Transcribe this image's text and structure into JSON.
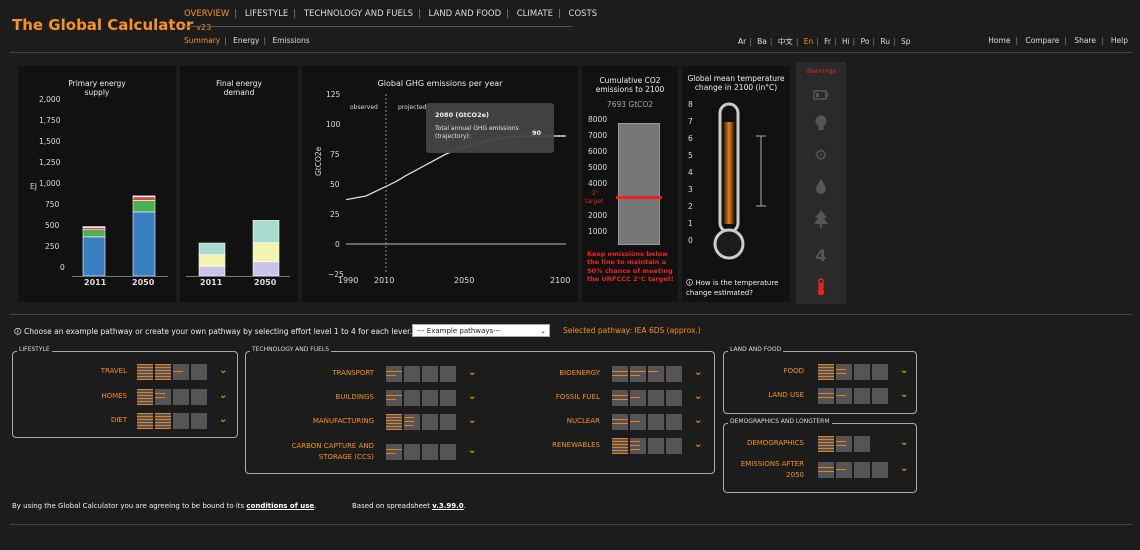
{
  "brand": {
    "title": "The Global Calculator",
    "version": "v23"
  },
  "main_nav": [
    "OVERVIEW",
    "LIFESTYLE",
    "TECHNOLOGY AND FUELS",
    "LAND AND FOOD",
    "CLIMATE",
    "COSTS"
  ],
  "sub_nav": [
    "Summary",
    "Energy",
    "Emissions"
  ],
  "languages": [
    "Ar",
    "Ba",
    "中文",
    "En",
    "Fr",
    "Hi",
    "Po",
    "Ru",
    "Sp"
  ],
  "util_nav": [
    "Home",
    "Compare",
    "Share",
    "Help"
  ],
  "colors": {
    "accent": "#f7931e",
    "warning": "#e22222",
    "bar_blue": "#3a7fc1",
    "bar_green": "#4caf50",
    "bar_red": "#e04040"
  },
  "charts": {
    "primary": {
      "title_line1": "Primary energy",
      "title_line2": "supply",
      "ylabel": "EJ",
      "yticks": [
        "2,000",
        "1,750",
        "1,500",
        "1,250",
        "1,000",
        "750",
        "500",
        "250",
        "0"
      ]
    },
    "final": {
      "title_line1": "Final energy",
      "title_line2": "demand"
    },
    "ghg": {
      "title": "Global GHG emissions per year",
      "ylabel": "GtCO2e",
      "yticks": [
        "125",
        "100",
        "75",
        "50",
        "25",
        "0",
        "−25"
      ],
      "xticks": [
        "1990",
        "2010",
        "2050",
        "2100"
      ],
      "observed_label": "observed",
      "projected_label": "projected",
      "tooltip_title": "2080 (GtCO2e)",
      "tooltip_label": "Total annual GHG emissions (trajectory):",
      "tooltip_value": "90"
    },
    "cumulative": {
      "title_line1": "Cumulative CO2",
      "title_line2": "emissions to 2100",
      "value": "7693 GtCO2",
      "yticks": [
        "8000",
        "7000",
        "6000",
        "5000",
        "4000",
        "3000",
        "2000",
        "1000"
      ],
      "target_label_1": "2°",
      "target_label_2": "target",
      "note": "Keep emissions below the line to maintain a 50% chance of meeting the UNFCCC 2°C target!"
    },
    "temperature": {
      "title_line1": "Global mean temperature",
      "title_line2": "change in 2100 (in°C)",
      "yticks": [
        "8",
        "7",
        "6",
        "5",
        "4",
        "3",
        "2",
        "1",
        "0"
      ],
      "note": "How is the temperature change estimated?"
    }
  },
  "chart_data": [
    {
      "type": "bar",
      "title": "Primary energy supply",
      "ylabel": "EJ",
      "categories": [
        "2011",
        "2050"
      ],
      "ylim": [
        0,
        2000
      ],
      "series": [
        {
          "values": [
            440,
            720
          ],
          "color": "#3a7fc1"
        },
        {
          "values": [
            80,
            130
          ],
          "color": "#4caf50"
        },
        {
          "values": [
            25,
            40
          ],
          "color": "#e04040"
        },
        {
          "values": [
            10,
            10
          ],
          "color": "#f2f2f2"
        }
      ]
    },
    {
      "type": "bar",
      "title": "Final energy demand",
      "categories": [
        "2011",
        "2050"
      ],
      "ylim": [
        0,
        2000
      ],
      "series": [
        {
          "values": [
            110,
            160
          ],
          "color": "#c9c3e8"
        },
        {
          "values": [
            130,
            215
          ],
          "color": "#f5f3b0"
        },
        {
          "values": [
            130,
            250
          ],
          "color": "#a8dcd0"
        }
      ]
    },
    {
      "type": "line",
      "title": "Global GHG emissions per year",
      "ylabel": "GtCO2e",
      "x": [
        1990,
        2000,
        2010,
        2015,
        2020,
        2030,
        2040,
        2050,
        2060,
        2070,
        2080,
        2100
      ],
      "y": [
        37,
        40,
        48,
        52,
        57,
        66,
        75,
        81,
        86,
        89,
        90,
        90
      ],
      "xlim": [
        1990,
        2100
      ],
      "ylim": [
        -25,
        125
      ]
    }
  ],
  "warnings": {
    "title": "Warnings",
    "icons": [
      "battery-icon",
      "bulb-icon",
      "gear-icon",
      "drop-icon",
      "tree-icon",
      "number-4-icon",
      "thermometer-icon"
    ],
    "number": "4"
  },
  "pathway": {
    "info": "Choose an example pathway or create your own pathway by selecting effort level 1 to 4 for each lever.",
    "select": "--- Example pathways---",
    "selected": "Selected pathway: IEA 6DS (approx.)"
  },
  "groups": {
    "lifestyle": {
      "title": "LIFESTYLE",
      "levers": [
        "TRAVEL",
        "HOMES",
        "DIET"
      ]
    },
    "tech": {
      "title": "TECHNOLOGY AND FUELS",
      "levers_left": [
        "TRANSPORT",
        "BUILDINGS",
        "MANUFACTURING",
        "CARBON CAPTURE AND",
        "STORAGE (CCS)"
      ],
      "levers_right": [
        "BIOENERGY",
        "FOSSIL FUEL",
        "NUCLEAR",
        "RENEWABLES"
      ]
    },
    "land": {
      "title": "LAND AND FOOD",
      "levers": [
        "FOOD",
        "LAND USE"
      ]
    },
    "demo": {
      "title": "DEMOGRAPHICS AND LONGTERM",
      "levers": [
        "DEMOGRAPHICS",
        "EMISSIONS AFTER",
        "2050"
      ]
    }
  },
  "footer": {
    "prefix": "By using the Global Calculator you are agreeing to be bound to its",
    "link": "conditions of use",
    "sheet_prefix": "Based on spreadsheet",
    "sheet_link": "v.3.99.0"
  }
}
